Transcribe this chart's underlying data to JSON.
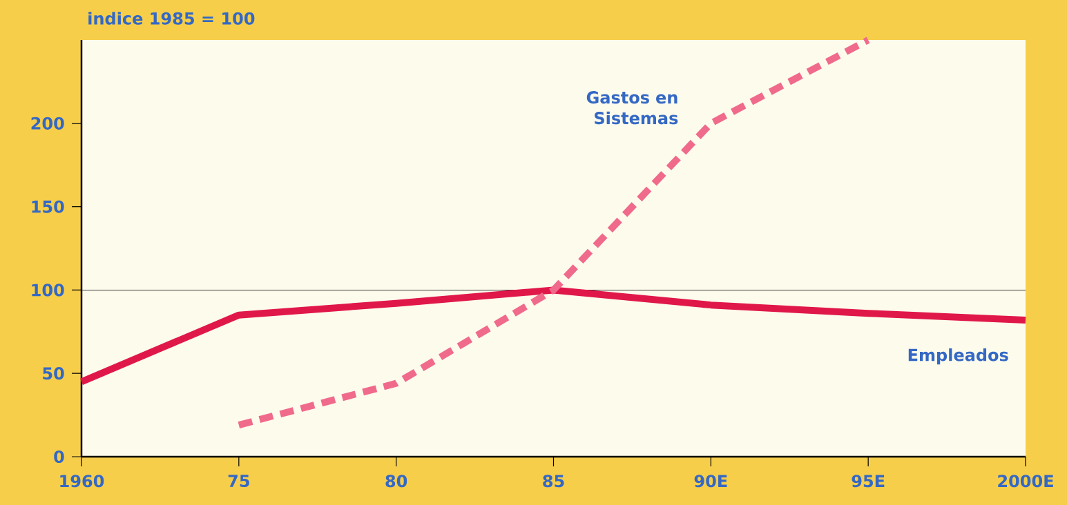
{
  "chart_data": {
    "type": "line",
    "ylabel": "indice 1985 = 100",
    "categories": [
      "1960",
      "75",
      "80",
      "85",
      "90E",
      "95E",
      "2000E"
    ],
    "ylim": [
      0,
      250
    ],
    "yticks": [
      0,
      50,
      100,
      150,
      200
    ],
    "series": [
      {
        "name": "Empleados",
        "color": "#e0184a",
        "line_style": "solid",
        "values": [
          45,
          85,
          92,
          100,
          91,
          86,
          82
        ]
      },
      {
        "name": "Gastos en Sistemas",
        "color": "#f06a8c",
        "line_style": "dashed",
        "values": [
          null,
          19,
          44,
          100,
          200,
          250,
          null
        ]
      }
    ],
    "ref_lines": [
      {
        "axis": "y",
        "value": 100,
        "color": "#333333"
      }
    ],
    "grid": false,
    "legend": false,
    "marker": "none"
  }
}
